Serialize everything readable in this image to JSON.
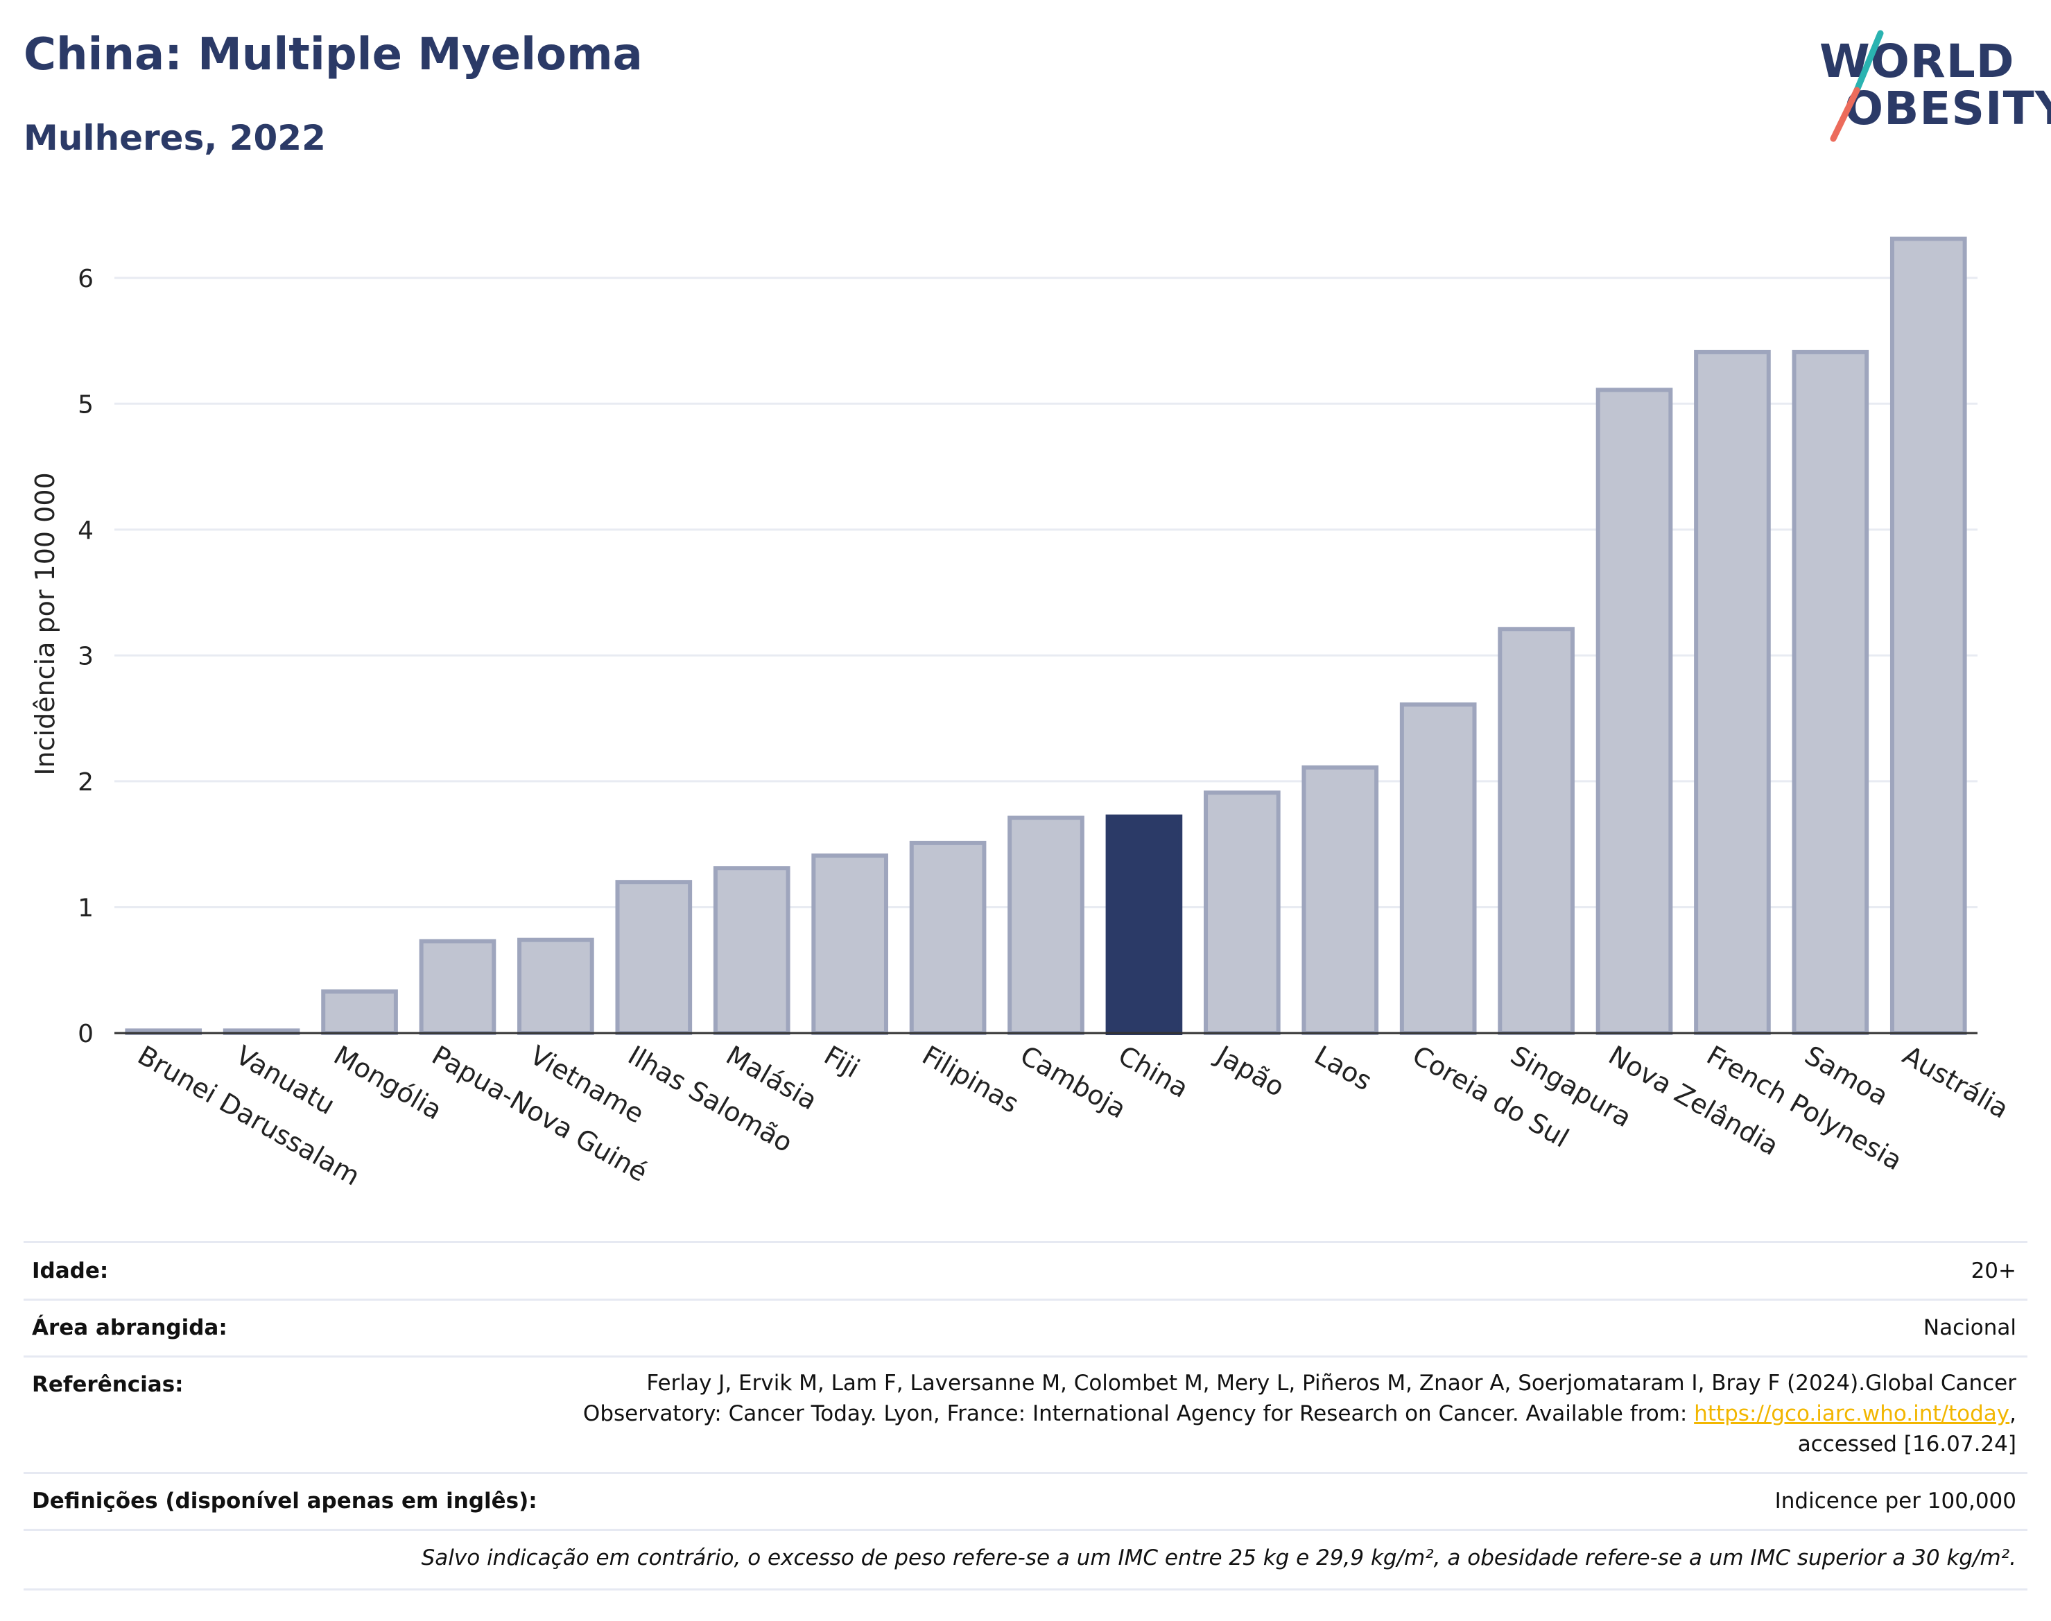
{
  "header": {
    "title": "China: Multiple Myeloma",
    "subtitle": "Mulheres, 2022",
    "logo_line1": "WORLD",
    "logo_line2": "OBESITY"
  },
  "colors": {
    "bar_default": "#c0c4d1",
    "bar_default_edge": "#9ea5bd",
    "bar_highlight": "#2b3a67",
    "grid": "#e8ebf2",
    "logo_teal": "#2ab3b1",
    "logo_coral": "#ec6b5b"
  },
  "chart_data": {
    "type": "bar",
    "ylabel": "Incidência por 100 000",
    "ylim": [
      0,
      6.5
    ],
    "yticks": [
      0,
      1,
      2,
      3,
      4,
      5,
      6
    ],
    "grid": true,
    "highlight": "China",
    "categories": [
      "Brunei Darussalam",
      "Vanuatu",
      "Mongólia",
      "Papua-Nova Guiné",
      "Vietname",
      "Ilhas Salomão",
      "Malásia",
      "Fiji",
      "Filipinas",
      "Camboja",
      "China",
      "Japão",
      "Laos",
      "Coreia do Sul",
      "Singapura",
      "Nova Zelândia",
      "French Polynesia",
      "Samoa",
      "Austrália"
    ],
    "values": [
      0.02,
      0.02,
      0.33,
      0.73,
      0.74,
      1.2,
      1.31,
      1.41,
      1.51,
      1.71,
      1.72,
      1.91,
      2.11,
      2.61,
      3.21,
      5.11,
      5.41,
      5.41,
      6.31
    ]
  },
  "info": {
    "age_label": "Idade:",
    "age_value": "20+",
    "area_label": "Área abrangida:",
    "area_value": "Nacional",
    "ref_label": "Referências:",
    "ref_line1": "Ferlay J, Ervik M, Lam F, Laversanne M, Colombet M, Mery L, Piñeros M, Znaor A, Soerjomataram I, Bray F (2024).Global Cancer",
    "ref_line2_prefix": "Observatory: Cancer Today. Lyon, France: International Agency for Research on Cancer. Available from: ",
    "ref_link": "https://gco.iarc.who.int/today",
    "ref_line2_suffix": ",",
    "ref_line3": "accessed [16.07.24]",
    "def_label": "Definições (disponível apenas em inglês):",
    "def_value": "Indicence per 100,000",
    "note": "Salvo indicação em contrário, o excesso de peso refere-se a um IMC entre 25 kg e 29,9 kg/m², a obesidade refere-se a um IMC superior a 30 kg/m²."
  }
}
